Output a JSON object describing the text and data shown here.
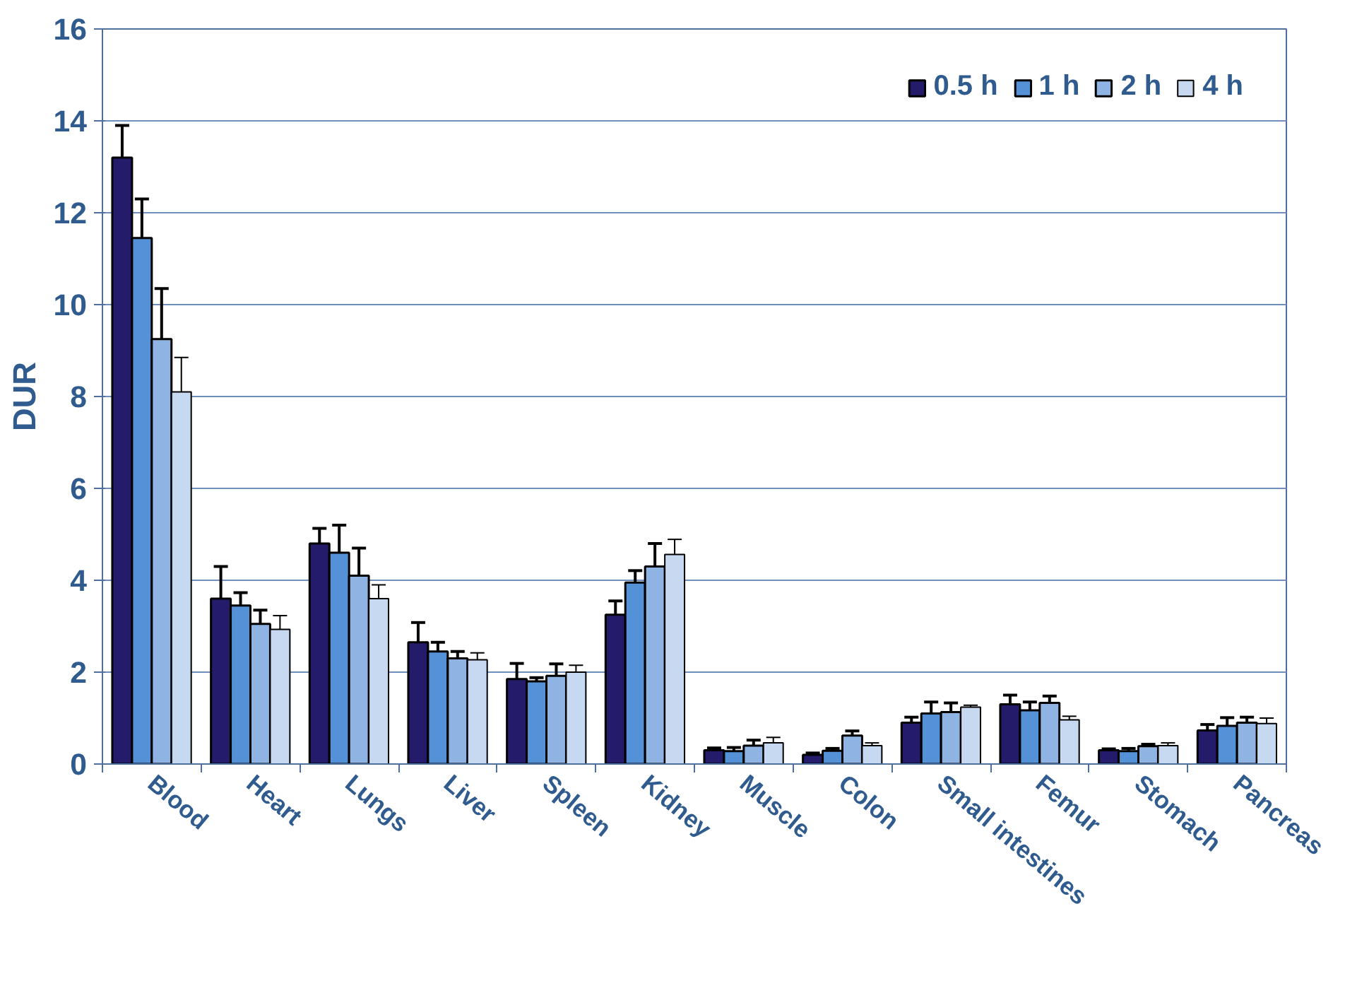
{
  "chart_data": {
    "type": "bar",
    "ylabel": "DUR",
    "categories": [
      "Blood",
      "Heart",
      "Lungs",
      "Liver",
      "Spleen",
      "Kidney",
      "Muscle",
      "Colon",
      "Small intestines",
      "Femur",
      "Stomach",
      "Pancreas"
    ],
    "series": [
      {
        "name": "0.5 h",
        "color": "#241c6b",
        "values": [
          13.2,
          3.6,
          4.8,
          2.65,
          1.85,
          3.25,
          0.3,
          0.2,
          0.9,
          1.3,
          0.3,
          0.73
        ],
        "errors": [
          0.7,
          0.7,
          0.33,
          0.43,
          0.34,
          0.3,
          0.05,
          0.04,
          0.12,
          0.2,
          0.03,
          0.13
        ]
      },
      {
        "name": "1 h",
        "color": "#5591d6",
        "values": [
          11.45,
          3.45,
          4.6,
          2.45,
          1.8,
          3.95,
          0.28,
          0.29,
          1.1,
          1.17,
          0.28,
          0.83
        ],
        "errors": [
          0.85,
          0.28,
          0.6,
          0.2,
          0.08,
          0.26,
          0.08,
          0.05,
          0.25,
          0.18,
          0.06,
          0.18
        ]
      },
      {
        "name": "2 h",
        "color": "#8fb4e3",
        "values": [
          9.25,
          3.05,
          4.1,
          2.3,
          1.92,
          4.3,
          0.4,
          0.62,
          1.13,
          1.33,
          0.39,
          0.9
        ],
        "errors": [
          1.1,
          0.3,
          0.6,
          0.15,
          0.26,
          0.5,
          0.12,
          0.1,
          0.2,
          0.15,
          0.04,
          0.12
        ]
      },
      {
        "name": "4 h",
        "color": "#c6d9f0",
        "values": [
          8.1,
          2.93,
          3.6,
          2.27,
          2.0,
          4.56,
          0.46,
          0.4,
          1.24,
          0.96,
          0.4,
          0.88
        ],
        "errors": [
          0.75,
          0.3,
          0.3,
          0.15,
          0.15,
          0.33,
          0.12,
          0.06,
          0.04,
          0.08,
          0.06,
          0.12
        ]
      }
    ],
    "ylim": [
      0,
      16
    ],
    "yticks": [
      0,
      2,
      4,
      6,
      8,
      10,
      12,
      14,
      16
    ],
    "grid": "y",
    "legend": "top right"
  }
}
